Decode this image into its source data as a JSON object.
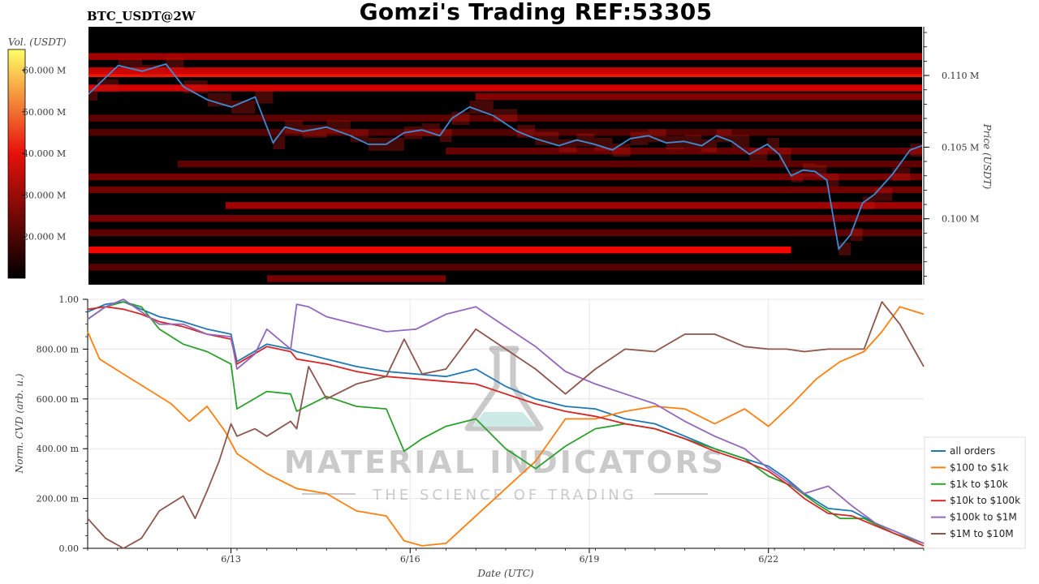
{
  "header": {
    "title": "Gomzi's Trading REF:53305",
    "symbol": "BTC_USDT@2W"
  },
  "watermark": {
    "brand": "MATERIAL INDICATORS",
    "tagline": "THE SCIENCE OF TRADING"
  },
  "colorbar": {
    "label": "Vol. (USDT)",
    "ticks": [
      "20.000 M",
      "30.000 M",
      "40.000 M",
      "50.000 M",
      "60.000 M"
    ],
    "range": [
      10,
      65
    ]
  },
  "colors": {
    "price_line": "#3c8dd6",
    "heat_low": "#000000",
    "heat_mid": "#e8110c",
    "heat_high": "#ffff66"
  },
  "chart_data": [
    {
      "type": "heatmap",
      "title": "BTC_USDT@2W",
      "ylabel": "Price (USDT)",
      "ytick_labels": [
        "0.100 M",
        "0.105 M",
        "0.110 M"
      ],
      "ylim": [
        0.0954,
        0.1134
      ],
      "xlim": [
        0,
        14
      ],
      "price_series": {
        "name": "Price",
        "x": [
          0,
          0.15,
          0.5,
          0.9,
          1.3,
          1.6,
          2.0,
          2.4,
          2.8,
          3.1,
          3.3,
          3.6,
          4.0,
          4.4,
          4.7,
          5.0,
          5.3,
          5.6,
          5.9,
          6.1,
          6.4,
          6.8,
          7.2,
          7.5,
          7.9,
          8.2,
          8.5,
          8.8,
          9.1,
          9.4,
          9.7,
          10.0,
          10.3,
          10.55,
          10.8,
          11.1,
          11.4,
          11.6,
          11.8,
          12.0,
          12.2,
          12.4,
          12.6,
          12.8,
          13.0,
          13.2,
          13.5,
          13.8,
          14.0
        ],
        "y": [
          0.1087,
          0.1093,
          0.1107,
          0.1103,
          0.1108,
          0.1092,
          0.1083,
          0.1078,
          0.1085,
          0.1053,
          0.1064,
          0.1061,
          0.1064,
          0.1058,
          0.1052,
          0.1052,
          0.106,
          0.1062,
          0.1058,
          0.107,
          0.1078,
          0.1072,
          0.1061,
          0.1056,
          0.1051,
          0.1055,
          0.1052,
          0.1048,
          0.1056,
          0.1058,
          0.1053,
          0.1054,
          0.1051,
          0.1058,
          0.1054,
          0.1045,
          0.1052,
          0.1045,
          0.103,
          0.1034,
          0.1033,
          0.1027,
          0.0979,
          0.0989,
          0.1011,
          0.1017,
          0.1031,
          0.1048,
          0.1051
        ]
      },
      "liquidity_bands": [
        {
          "price": 0.1113,
          "intensity": 0.45,
          "x": [
            0,
            14
          ]
        },
        {
          "price": 0.1101,
          "intensity": 0.78,
          "x": [
            0,
            14
          ]
        },
        {
          "price": 0.1091,
          "intensity": 0.6,
          "x": [
            0,
            14
          ]
        },
        {
          "price": 0.1103,
          "intensity": 0.55,
          "x": [
            0,
            14
          ]
        },
        {
          "price": 0.1085,
          "intensity": 0.35,
          "x": [
            6.5,
            14
          ]
        },
        {
          "price": 0.107,
          "intensity": 0.22,
          "x": [
            0,
            14
          ]
        },
        {
          "price": 0.106,
          "intensity": 0.18,
          "x": [
            0,
            14
          ]
        },
        {
          "price": 0.1047,
          "intensity": 0.25,
          "x": [
            6.0,
            14
          ]
        },
        {
          "price": 0.1038,
          "intensity": 0.22,
          "x": [
            1.5,
            14
          ]
        },
        {
          "price": 0.1029,
          "intensity": 0.3,
          "x": [
            0,
            14
          ]
        },
        {
          "price": 0.102,
          "intensity": 0.28,
          "x": [
            0,
            14
          ]
        },
        {
          "price": 0.1009,
          "intensity": 0.45,
          "x": [
            2.3,
            14
          ]
        },
        {
          "price": 0.1,
          "intensity": 0.3,
          "x": [
            0,
            14
          ]
        },
        {
          "price": 0.099,
          "intensity": 0.22,
          "x": [
            0,
            14
          ]
        },
        {
          "price": 0.0978,
          "intensity": 0.72,
          "x": [
            0,
            11.8
          ]
        },
        {
          "price": 0.0966,
          "intensity": 0.2,
          "x": [
            0,
            14
          ]
        },
        {
          "price": 0.0958,
          "intensity": 0.3,
          "x": [
            3.0,
            6.0
          ]
        }
      ]
    },
    {
      "type": "line",
      "xlabel": "Date (UTC)",
      "ylabel": "Norm. CVD (arb. u.)",
      "x_tick_labels": [
        "6/13",
        "6/16",
        "6/19",
        "6/22"
      ],
      "x_tick_values": [
        2.4,
        5.4,
        8.4,
        11.4
      ],
      "ytick_labels": [
        "0.00",
        "200.00 m",
        "400.00 m",
        "600.00 m",
        "800.00 m",
        "1.00"
      ],
      "ylim": [
        0,
        1.0
      ],
      "xlim": [
        0,
        14
      ],
      "legend_position": "bottom-right",
      "grid": true,
      "series": [
        {
          "name": "all orders",
          "color": "#1f77b4",
          "x": [
            0,
            0.3,
            0.6,
            0.9,
            1.2,
            1.6,
            2.0,
            2.4,
            2.5,
            3.0,
            3.4,
            3.5,
            4.0,
            4.5,
            5.0,
            5.5,
            6.0,
            6.5,
            7.0,
            7.5,
            8.0,
            8.5,
            9.0,
            9.5,
            10.0,
            10.5,
            11.0,
            11.4,
            11.7,
            12.0,
            12.4,
            12.8,
            13.2,
            13.6,
            14.0
          ],
          "y": [
            0.95,
            0.98,
            0.99,
            0.96,
            0.93,
            0.91,
            0.88,
            0.86,
            0.75,
            0.82,
            0.8,
            0.79,
            0.76,
            0.73,
            0.71,
            0.7,
            0.69,
            0.72,
            0.65,
            0.6,
            0.57,
            0.56,
            0.52,
            0.5,
            0.45,
            0.4,
            0.36,
            0.33,
            0.28,
            0.22,
            0.16,
            0.15,
            0.1,
            0.06,
            0.02
          ]
        },
        {
          "name": "$100 to $1k",
          "color": "#ff7f0e",
          "x": [
            0,
            0.2,
            0.6,
            1.0,
            1.4,
            1.7,
            2.0,
            2.3,
            2.5,
            3.0,
            3.5,
            4.0,
            4.5,
            5.0,
            5.3,
            5.6,
            6.0,
            6.5,
            7.0,
            7.5,
            8.0,
            8.5,
            9.0,
            9.5,
            10.0,
            10.5,
            11.0,
            11.4,
            11.8,
            12.2,
            12.6,
            13.0,
            13.3,
            13.6,
            14.0
          ],
          "y": [
            0.87,
            0.76,
            0.7,
            0.64,
            0.58,
            0.51,
            0.57,
            0.47,
            0.38,
            0.3,
            0.24,
            0.22,
            0.15,
            0.13,
            0.03,
            0.01,
            0.02,
            0.13,
            0.24,
            0.35,
            0.52,
            0.52,
            0.55,
            0.57,
            0.56,
            0.5,
            0.56,
            0.49,
            0.58,
            0.68,
            0.75,
            0.79,
            0.87,
            0.97,
            0.94
          ]
        },
        {
          "name": "$1k to $10k",
          "color": "#2ca02c",
          "x": [
            0,
            0.3,
            0.6,
            0.9,
            1.2,
            1.6,
            2.0,
            2.4,
            2.5,
            3.0,
            3.4,
            3.5,
            4.0,
            4.5,
            5.0,
            5.3,
            5.6,
            6.0,
            6.5,
            7.0,
            7.5,
            8.0,
            8.5,
            9.0,
            9.5,
            10.0,
            10.5,
            11.0,
            11.4,
            11.8,
            12.2,
            12.6,
            13.0,
            13.5,
            14.0
          ],
          "y": [
            0.92,
            0.97,
            0.99,
            0.97,
            0.88,
            0.82,
            0.79,
            0.74,
            0.56,
            0.63,
            0.62,
            0.55,
            0.61,
            0.57,
            0.56,
            0.39,
            0.44,
            0.49,
            0.52,
            0.4,
            0.32,
            0.41,
            0.48,
            0.5,
            0.48,
            0.44,
            0.4,
            0.36,
            0.29,
            0.25,
            0.18,
            0.12,
            0.12,
            0.06,
            0.02
          ]
        },
        {
          "name": "$10k to $100k",
          "color": "#d62728",
          "x": [
            0,
            0.3,
            0.6,
            0.9,
            1.2,
            1.6,
            2.0,
            2.4,
            2.5,
            3.0,
            3.4,
            3.5,
            4.0,
            4.5,
            5.0,
            5.5,
            6.0,
            6.5,
            7.0,
            7.5,
            8.0,
            8.5,
            9.0,
            9.5,
            10.0,
            10.5,
            11.0,
            11.4,
            11.7,
            12.0,
            12.4,
            12.8,
            13.2,
            13.6,
            14.0
          ],
          "y": [
            0.96,
            0.97,
            0.96,
            0.94,
            0.91,
            0.89,
            0.86,
            0.84,
            0.74,
            0.81,
            0.79,
            0.76,
            0.74,
            0.71,
            0.69,
            0.68,
            0.67,
            0.66,
            0.62,
            0.58,
            0.55,
            0.53,
            0.5,
            0.48,
            0.44,
            0.39,
            0.35,
            0.31,
            0.26,
            0.2,
            0.14,
            0.13,
            0.09,
            0.05,
            0.01
          ]
        },
        {
          "name": "$100k to $1M",
          "color": "#9467bd",
          "x": [
            0,
            0.3,
            0.6,
            0.9,
            1.2,
            1.6,
            2.0,
            2.4,
            2.5,
            2.8,
            3.0,
            3.4,
            3.5,
            3.7,
            4.0,
            4.5,
            5.0,
            5.5,
            6.0,
            6.5,
            7.0,
            7.5,
            8.0,
            8.5,
            9.0,
            9.5,
            10.0,
            10.5,
            11.0,
            11.4,
            11.7,
            12.0,
            12.4,
            12.8,
            13.2,
            13.6,
            14.0
          ],
          "y": [
            0.92,
            0.97,
            1.0,
            0.95,
            0.9,
            0.9,
            0.86,
            0.85,
            0.72,
            0.78,
            0.88,
            0.8,
            0.98,
            0.97,
            0.93,
            0.9,
            0.87,
            0.88,
            0.94,
            0.97,
            0.89,
            0.81,
            0.71,
            0.66,
            0.62,
            0.58,
            0.51,
            0.45,
            0.4,
            0.32,
            0.27,
            0.22,
            0.25,
            0.17,
            0.1,
            0.06,
            0.02
          ]
        },
        {
          "name": "$1M to $10M",
          "color": "#8c564b",
          "x": [
            0,
            0.3,
            0.6,
            0.9,
            1.2,
            1.6,
            1.8,
            2.0,
            2.2,
            2.4,
            2.5,
            2.8,
            3.0,
            3.4,
            3.5,
            3.7,
            4.0,
            4.5,
            5.0,
            5.3,
            5.6,
            6.0,
            6.5,
            7.0,
            7.5,
            8.0,
            8.5,
            9.0,
            9.5,
            10.0,
            10.5,
            11.0,
            11.4,
            11.7,
            12.0,
            12.4,
            12.8,
            13.0,
            13.3,
            13.6,
            14.0
          ],
          "y": [
            0.12,
            0.04,
            0.0,
            0.04,
            0.15,
            0.21,
            0.12,
            0.23,
            0.35,
            0.5,
            0.45,
            0.48,
            0.45,
            0.51,
            0.48,
            0.73,
            0.6,
            0.66,
            0.69,
            0.84,
            0.7,
            0.72,
            0.88,
            0.8,
            0.72,
            0.62,
            0.72,
            0.8,
            0.79,
            0.86,
            0.86,
            0.81,
            0.8,
            0.8,
            0.79,
            0.8,
            0.8,
            0.8,
            0.99,
            0.9,
            0.73
          ]
        }
      ]
    }
  ]
}
